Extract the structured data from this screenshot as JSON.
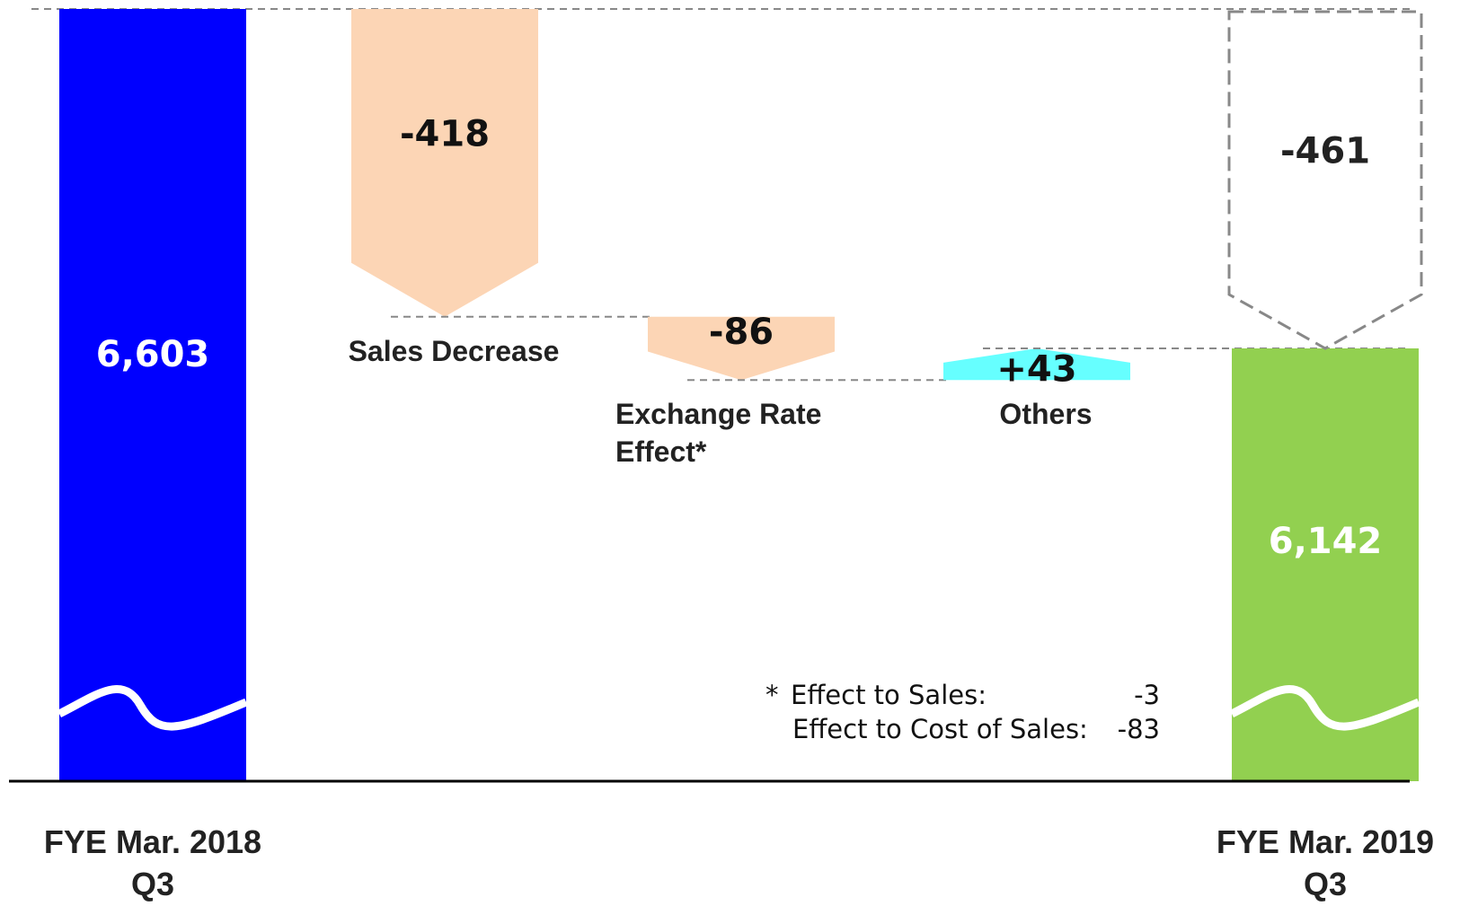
{
  "chart_data": {
    "type": "waterfall",
    "categories": [
      "FYE Mar. 2018\nQ3",
      "Sales Decrease",
      "Exchange Rate\nEffect*",
      "Others",
      "FYE Mar. 2019\nQ3"
    ],
    "values": [
      6603,
      -418,
      -86,
      43,
      6142
    ],
    "value_labels": [
      "6,603",
      "-418",
      "-86",
      "+43",
      "6,142"
    ],
    "colors": [
      "#0000ff",
      "#fcd5b5",
      "#fcd5b5",
      "#66ffff",
      "#92d050"
    ],
    "total_change": {
      "value": -461,
      "label": "-461"
    },
    "footnote": {
      "marker": "*",
      "lines": [
        {
          "label": "Effect to Sales:",
          "value": -3
        },
        {
          "label": "Effect to Cost of Sales:",
          "value": -83
        }
      ]
    }
  }
}
